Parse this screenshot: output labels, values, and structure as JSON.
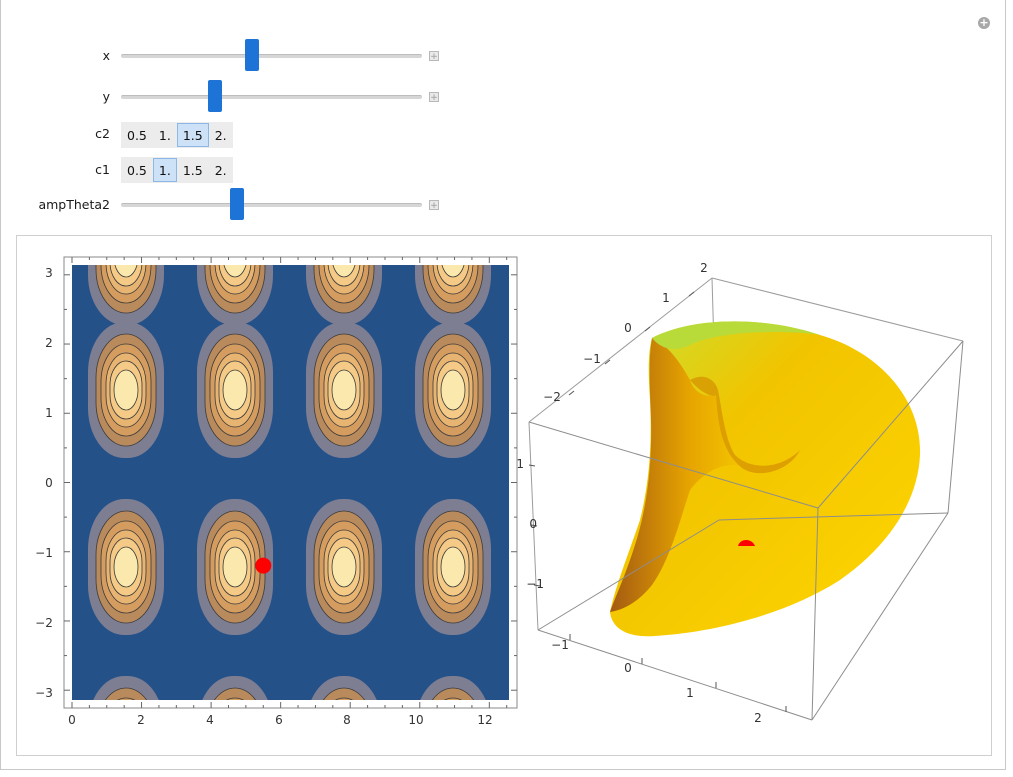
{
  "controls": {
    "x": {
      "label": "x",
      "value_fraction": 0.44
    },
    "y": {
      "label": "y",
      "value_fraction": 0.32
    },
    "c2": {
      "label": "c2",
      "options": [
        "0.5",
        "1.",
        "1.5",
        "2."
      ],
      "selected": "1.5"
    },
    "c1": {
      "label": "c1",
      "options": [
        "0.5",
        "1.",
        "1.5",
        "2."
      ],
      "selected": "1."
    },
    "ampTheta2": {
      "label": "ampTheta2",
      "value_fraction": 0.38
    }
  },
  "contour_plot": {
    "x_ticks": [
      "0",
      "2",
      "4",
      "6",
      "8",
      "10",
      "12"
    ],
    "y_ticks": [
      "3",
      "2",
      "1",
      "0",
      "−1",
      "−2",
      "−3"
    ],
    "point": {
      "x": 5.5,
      "y": -1.2
    },
    "colors": {
      "background": "#255189",
      "point": "#ff0000"
    }
  },
  "surface_plot": {
    "vertical_axis_ticks": [
      "1",
      "0",
      "−1"
    ],
    "depth_axis_ticks": [
      "2",
      "1",
      "0",
      "−1",
      "−2"
    ],
    "bottom_axis_ticks": [
      "−1",
      "0",
      "1",
      "2"
    ],
    "colors": {
      "surface": "#f5c400",
      "point": "#ff0000"
    }
  }
}
